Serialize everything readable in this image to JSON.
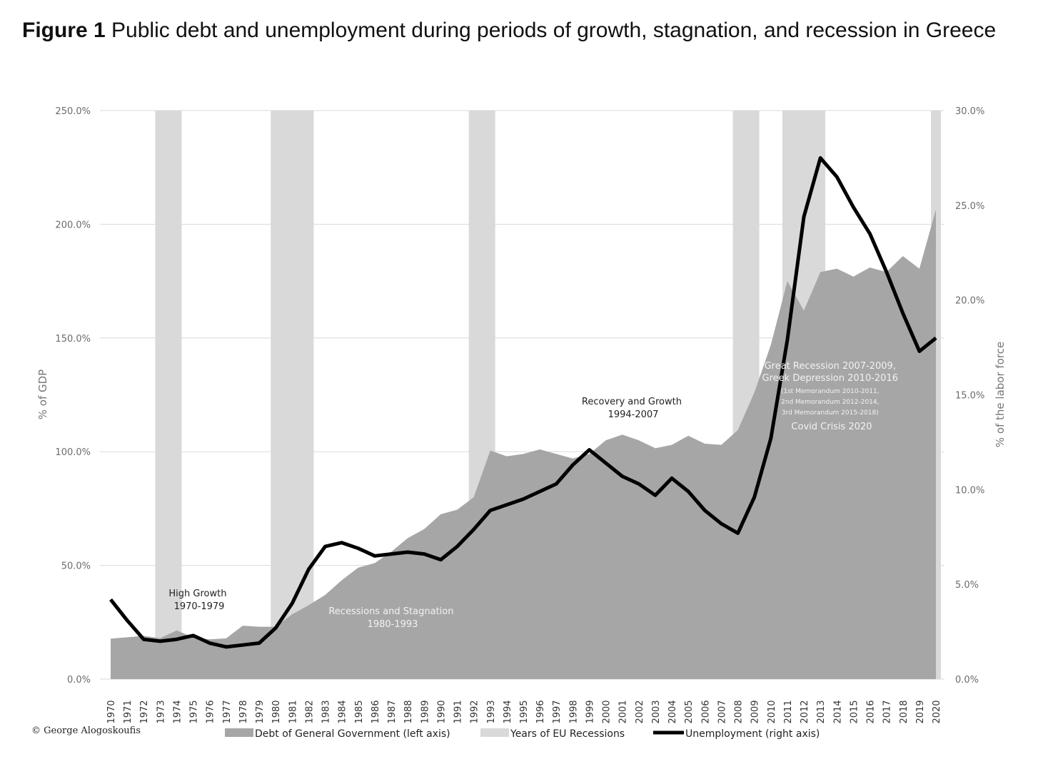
{
  "figure": {
    "label": "Figure 1",
    "caption": "Public debt and unemployment during periods of growth, stagnation, and recession in Greece"
  },
  "colors": {
    "debt_area": "#a6a6a6",
    "recession_band": "#d9d9d9",
    "unemployment_line": "#000000",
    "grid": "#d9d9d9"
  },
  "chart_data": {
    "type": "area",
    "x": [
      1970,
      1971,
      1972,
      1973,
      1974,
      1975,
      1976,
      1977,
      1978,
      1979,
      1980,
      1981,
      1982,
      1983,
      1984,
      1985,
      1986,
      1987,
      1988,
      1989,
      1990,
      1991,
      1992,
      1993,
      1994,
      1995,
      1996,
      1997,
      1998,
      1999,
      2000,
      2001,
      2002,
      2003,
      2004,
      2005,
      2006,
      2007,
      2008,
      2009,
      2010,
      2011,
      2012,
      2013,
      2014,
      2015,
      2016,
      2017,
      2018,
      2019,
      2020
    ],
    "series": [
      {
        "name": "Debt of General Government (left axis)",
        "axis": "left",
        "kind": "area",
        "values": [
          17.8,
          18.4,
          19.0,
          18.0,
          21.4,
          18.4,
          17.5,
          17.9,
          23.5,
          23.0,
          23.0,
          28.5,
          32.5,
          37.0,
          43.5,
          49.0,
          51.0,
          56.0,
          62.0,
          66.0,
          72.5,
          74.5,
          80.0,
          100.5,
          98.0,
          99.0,
          101.0,
          99.0,
          97.0,
          99.0,
          105.0,
          107.5,
          105.0,
          101.5,
          103.0,
          107.0,
          103.5,
          103.0,
          109.5,
          126.0,
          147.0,
          175.0,
          162.0,
          179.0,
          180.5,
          177.0,
          181.0,
          179.0,
          186.0,
          180.5,
          206.5
        ]
      },
      {
        "name": "Unemployment (right axis)",
        "axis": "right",
        "kind": "line",
        "values": [
          4.2,
          3.1,
          2.1,
          2.0,
          2.1,
          2.3,
          1.9,
          1.7,
          1.8,
          1.9,
          2.7,
          4.0,
          5.8,
          7.0,
          7.2,
          6.9,
          6.5,
          6.6,
          6.7,
          6.6,
          6.3,
          7.0,
          7.9,
          8.9,
          9.2,
          9.5,
          9.9,
          10.3,
          11.3,
          12.1,
          11.4,
          10.7,
          10.3,
          9.7,
          10.6,
          9.9,
          8.9,
          8.2,
          7.7,
          9.6,
          12.7,
          17.9,
          24.4,
          27.5,
          26.5,
          24.9,
          23.5,
          21.5,
          19.3,
          17.3,
          18.0
        ]
      }
    ],
    "recession_bands": [
      [
        1973,
        1974
      ],
      [
        1980,
        1982
      ],
      [
        1992,
        1993
      ],
      [
        2008,
        2009
      ],
      [
        2011,
        2013
      ],
      [
        2020,
        2020
      ]
    ],
    "left_axis": {
      "label": "% of GDP",
      "ylim": [
        0,
        250
      ],
      "ticks": [
        "0.0%",
        "50.0%",
        "100.0%",
        "150.0%",
        "200.0%",
        "250.0%"
      ]
    },
    "right_axis": {
      "label": "% of the labor force",
      "ylim": [
        0,
        30
      ],
      "ticks": [
        "0.0%",
        "5.0%",
        "10.0%",
        "15.0%",
        "20.0%",
        "25.0%",
        "30.0%"
      ]
    },
    "grid": true,
    "legend_position": "bottom",
    "legend": [
      "Debt of General Government (left axis)",
      "Years of EU Recessions",
      "Unemployment (right axis)"
    ],
    "annotations": [
      {
        "text": [
          "High Growth",
          "1970-1979"
        ],
        "style": "dark"
      },
      {
        "text": [
          "Recessions and Stagnation",
          "1980-1993"
        ],
        "style": "light"
      },
      {
        "text": [
          "Recovery and Growth",
          "1994-2007"
        ],
        "style": "dark"
      },
      {
        "text": [
          "Great Recession 2007-2009,",
          "Greek Depression 2010-2016",
          "(1st Memorandum 2010-2011,",
          "2nd Memorandum 2012-2014,",
          "3rd Memorandum 2015-2018)",
          "Covid Crisis 2020"
        ],
        "style": "light"
      }
    ]
  },
  "copyright": "© George Alogoskoufis"
}
